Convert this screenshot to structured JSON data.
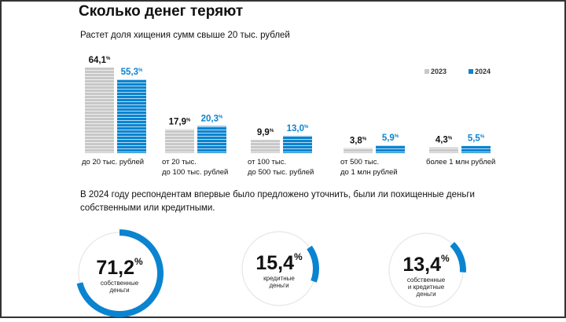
{
  "title": "Сколько денег теряют",
  "chart_data": {
    "type": "bar",
    "title": "Растет доля хищения сумм свыше 20 тыс. рублей",
    "categories": [
      "до 20 тыс. рублей",
      "от 20 тыс.\nдо 100 тыс. рублей",
      "от 100 тыс.\nдо 500 тыс. рублей",
      "от 500 тыс.\nдо 1 млн рублей",
      "более 1 млн рублей"
    ],
    "series": [
      {
        "name": "2023",
        "color": "#c8c8c8",
        "values": [
          64.1,
          17.9,
          9.9,
          3.8,
          4.3
        ],
        "labels": [
          "64,1",
          "17,9",
          "9,9",
          "3,8",
          "4,3"
        ]
      },
      {
        "name": "2024",
        "color": "#0a84d0",
        "values": [
          55.3,
          20.3,
          13.0,
          5.9,
          5.5
        ],
        "labels": [
          "55,3",
          "20,3",
          "13,0",
          "5,9",
          "5,5"
        ]
      }
    ],
    "unit": "%",
    "legend": "top-right"
  },
  "note": "В 2024 году респондентам впервые было предложено уточнить, были ли похищенные деньги собственными или кредитными.",
  "rings": [
    {
      "value": 71.2,
      "label": "71,2",
      "caption": "собственные\nденьги"
    },
    {
      "value": 15.4,
      "label": "15,4",
      "caption": "кредитные\nденьги"
    },
    {
      "value": 13.4,
      "label": "13,4",
      "caption": "собственные\nи кредитные\nденьги"
    }
  ]
}
